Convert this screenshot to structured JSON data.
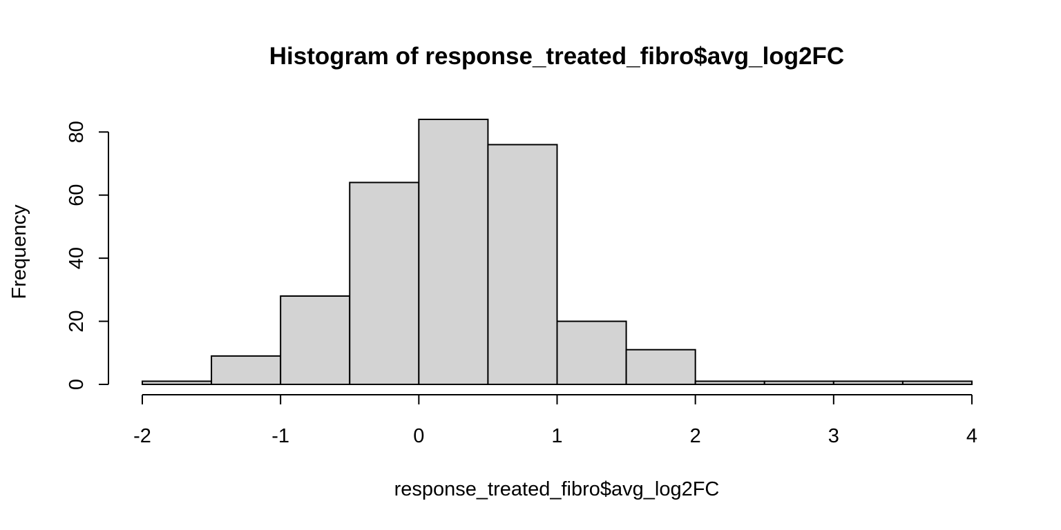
{
  "chart_data": {
    "type": "bar",
    "histogram": true,
    "title": "Histogram of response_treated_fibro$avg_log2FC",
    "xlabel": "response_treated_fibro$avg_log2FC",
    "ylabel": "Frequency",
    "bin_edges": [
      -2,
      -1.5,
      -1,
      -0.5,
      0,
      0.5,
      1,
      1.5,
      2,
      2.5,
      3,
      3.5,
      4
    ],
    "values": [
      1,
      9,
      28,
      64,
      84,
      76,
      20,
      11,
      1,
      1,
      1,
      1
    ],
    "x_ticks": [
      -2,
      -1,
      0,
      1,
      2,
      3,
      4
    ],
    "y_ticks": [
      0,
      20,
      40,
      60,
      80
    ],
    "xlim": [
      -2,
      4
    ],
    "ylim": [
      0,
      84
    ],
    "bar_color": "#d3d3d3",
    "grid": false
  }
}
